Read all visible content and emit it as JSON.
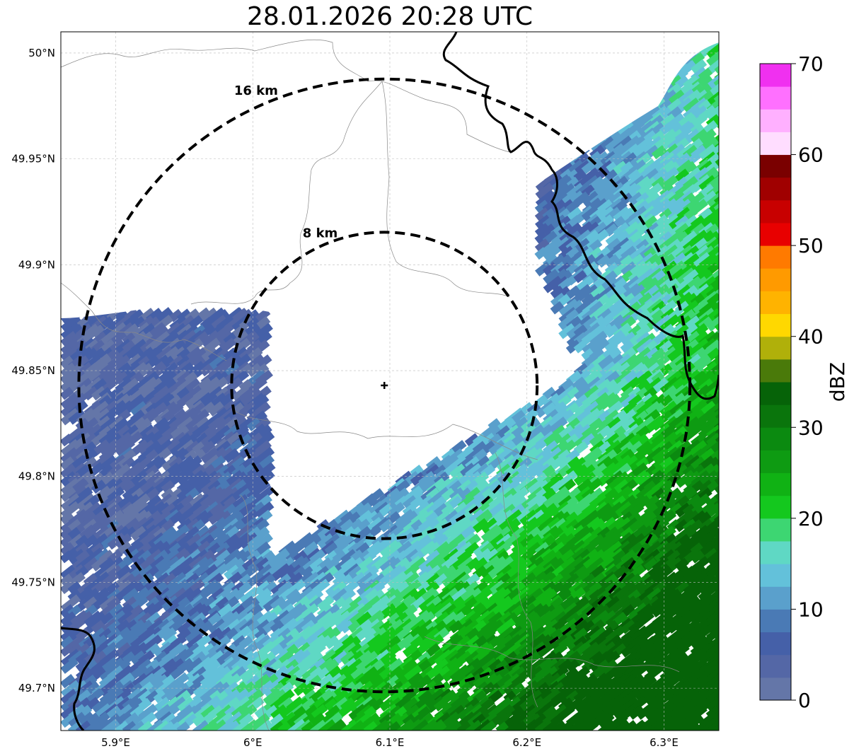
{
  "title": "28.01.2026 20:28 UTC",
  "map": {
    "lon_range": [
      5.86,
      6.34
    ],
    "lat_range": [
      49.68,
      50.01
    ],
    "lon_ticks": [
      {
        "value": 5.9,
        "label": "5.9°E"
      },
      {
        "value": 6.0,
        "label": "6°E"
      },
      {
        "value": 6.1,
        "label": "6.1°E"
      },
      {
        "value": 6.2,
        "label": "6.2°E"
      },
      {
        "value": 6.3,
        "label": "6.3°E"
      }
    ],
    "lat_ticks": [
      {
        "value": 49.7,
        "label": "49.7°N"
      },
      {
        "value": 49.75,
        "label": "49.75°N"
      },
      {
        "value": 49.8,
        "label": "49.8°N"
      },
      {
        "value": 49.85,
        "label": "49.85°N"
      },
      {
        "value": 49.9,
        "label": "49.9°N"
      },
      {
        "value": 49.95,
        "label": "49.95°N"
      },
      {
        "value": 50.0,
        "label": "50°N"
      }
    ],
    "radar_site": {
      "lon": 6.096,
      "lat": 49.843
    },
    "range_rings": [
      {
        "radius_km": 8,
        "label": "8 km"
      },
      {
        "radius_km": 16,
        "label": "16 km"
      }
    ]
  },
  "colorbar": {
    "label": "dBZ",
    "min": 0,
    "max": 70,
    "ticks": [
      0,
      10,
      20,
      30,
      40,
      50,
      60,
      70
    ],
    "colors": [
      "#6476a8",
      "#5467a6",
      "#4560a8",
      "#4a7ab5",
      "#5aa0cc",
      "#63c1da",
      "#5fd8c4",
      "#3dd672",
      "#14c81e",
      "#10b214",
      "#0e9b12",
      "#0b8a10",
      "#0a750c",
      "#066308",
      "#4a7a0a",
      "#b0b00a",
      "#ffd800",
      "#ffb300",
      "#ff9a00",
      "#ff7a00",
      "#e80000",
      "#c80000",
      "#a00000",
      "#7a0000",
      "#ffddff",
      "#ffb0ff",
      "#ff70ff",
      "#f030f0"
    ]
  }
}
